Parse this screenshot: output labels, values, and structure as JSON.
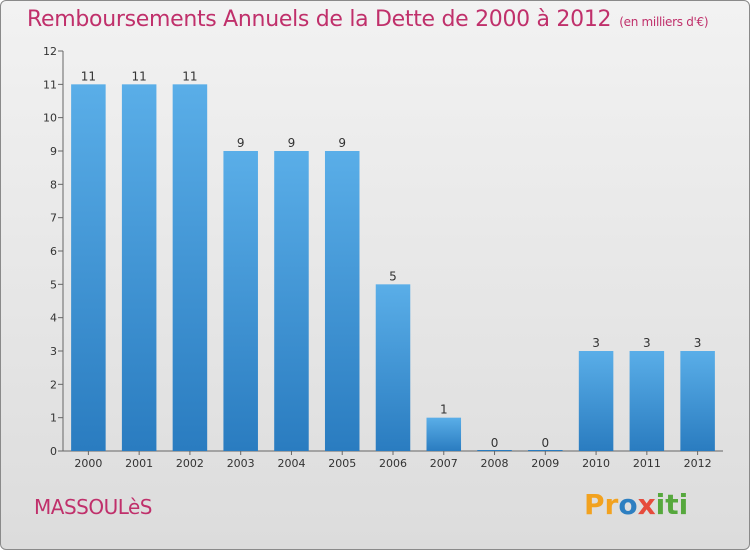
{
  "title": "Remboursements Annuels de la Dette de 2000 à 2012",
  "subtitle": "(en milliers d'€)",
  "commune": "MASSOULèS",
  "logo": {
    "p1": "Pr",
    "p2": "o",
    "p3": "x",
    "p4": "iti"
  },
  "colors": {
    "bar_light": "#5aaee8",
    "bar_dark": "#2a7cc0",
    "title": "#c0306b"
  },
  "chart_data": {
    "type": "bar",
    "categories": [
      "2000",
      "2001",
      "2002",
      "2003",
      "2004",
      "2005",
      "2006",
      "2007",
      "2008",
      "2009",
      "2010",
      "2011",
      "2012"
    ],
    "values": [
      11,
      11,
      11,
      9,
      9,
      9,
      5,
      1,
      0,
      0,
      3,
      3,
      3
    ],
    "ylim": [
      0,
      12
    ],
    "yticks": [
      0,
      1,
      2,
      3,
      4,
      5,
      6,
      7,
      8,
      9,
      10,
      11,
      12
    ],
    "grid": false
  }
}
